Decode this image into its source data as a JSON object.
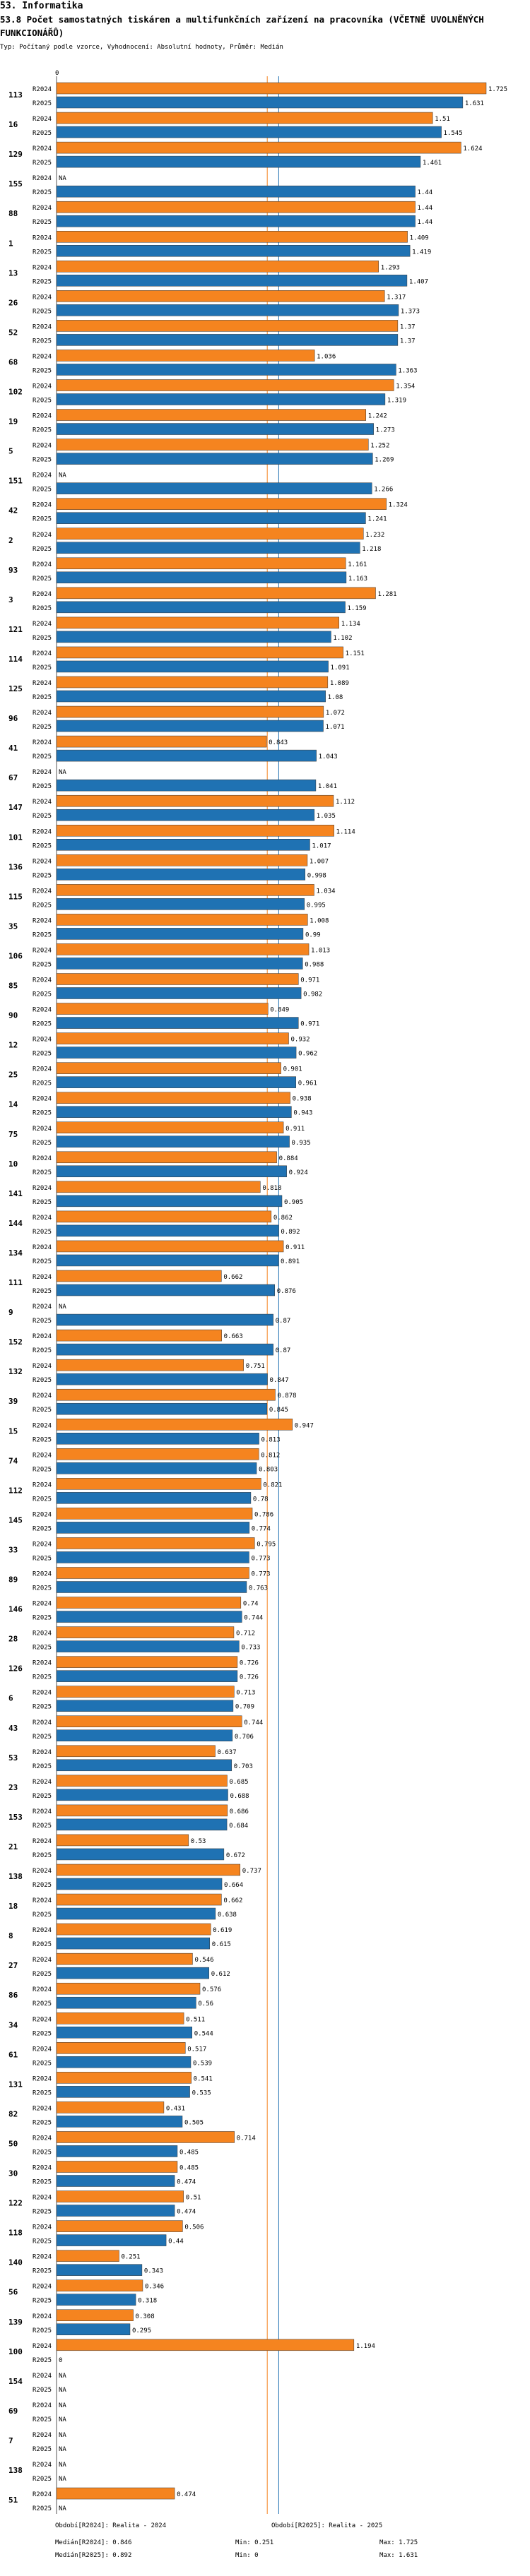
{
  "section_title": "53. Informatika",
  "chart_title": "53.8 Počet samostatných tiskáren a multifunkčních zařízení na pracovníka (VČETNĚ UVOLNĚNÝCH FUNKCIONÁŘŮ)",
  "chart_subtitle": "Typ: Počítaný podle vzorce, Vyhodnocení: Absolutní hodnoty, Průměr: Medián",
  "colors": {
    "r2024": "#F5841F",
    "r2025": "#1F72B3",
    "median": "#F5841F",
    "median2": "#1F72B3",
    "axis": "#555555"
  },
  "footer": {
    "legend_2024": "Období[R2024]: Realita - 2024",
    "legend_2025": "Období[R2025]: Realita - 2025",
    "median_2024": "Medián[R2024]: 0.846",
    "median_2025": "Medián[R2025]: 0.892",
    "min_2024": "Min: 0.251",
    "min_2025": "Min: 0",
    "max_2024": "Max: 1.725",
    "max_2025": "Max: 1.631"
  },
  "chart_data": {
    "type": "bar",
    "orientation": "horizontal",
    "xlim": [
      0,
      1.8
    ],
    "zero_label": "0",
    "na_label": "NA",
    "medians": {
      "R2024": 0.846,
      "R2025": 0.892
    },
    "series_names": [
      "R2024",
      "R2025"
    ],
    "groups": [
      {
        "id": "113",
        "R2024": 1.725,
        "R2025": 1.631
      },
      {
        "id": "16",
        "R2024": 1.51,
        "R2025": 1.545
      },
      {
        "id": "129",
        "R2024": 1.624,
        "R2025": 1.461
      },
      {
        "id": "155",
        "R2024": null,
        "R2025": 1.44
      },
      {
        "id": "88",
        "R2024": 1.44,
        "R2025": 1.44
      },
      {
        "id": "1",
        "R2024": 1.409,
        "R2025": 1.419
      },
      {
        "id": "13",
        "R2024": 1.293,
        "R2025": 1.407
      },
      {
        "id": "26",
        "R2024": 1.317,
        "R2025": 1.373
      },
      {
        "id": "52",
        "R2024": 1.37,
        "R2025": 1.37
      },
      {
        "id": "68",
        "R2024": 1.036,
        "R2025": 1.363
      },
      {
        "id": "102",
        "R2024": 1.354,
        "R2025": 1.319
      },
      {
        "id": "19",
        "R2024": 1.242,
        "R2025": 1.273
      },
      {
        "id": "5",
        "R2024": 1.252,
        "R2025": 1.269
      },
      {
        "id": "151",
        "R2024": null,
        "R2025": 1.266
      },
      {
        "id": "42",
        "R2024": 1.324,
        "R2025": 1.241
      },
      {
        "id": "2",
        "R2024": 1.232,
        "R2025": 1.218
      },
      {
        "id": "93",
        "R2024": 1.161,
        "R2025": 1.163
      },
      {
        "id": "3",
        "R2024": 1.281,
        "R2025": 1.159
      },
      {
        "id": "121",
        "R2024": 1.134,
        "R2025": 1.102
      },
      {
        "id": "114",
        "R2024": 1.151,
        "R2025": 1.091
      },
      {
        "id": "125",
        "R2024": 1.089,
        "R2025": 1.08
      },
      {
        "id": "96",
        "R2024": 1.072,
        "R2025": 1.071
      },
      {
        "id": "41",
        "R2024": 0.843,
        "R2025": 1.043
      },
      {
        "id": "67",
        "R2024": null,
        "R2025": 1.041
      },
      {
        "id": "147",
        "R2024": 1.112,
        "R2025": 1.035
      },
      {
        "id": "101",
        "R2024": 1.114,
        "R2025": 1.017
      },
      {
        "id": "136",
        "R2024": 1.007,
        "R2025": 0.998
      },
      {
        "id": "115",
        "R2024": 1.034,
        "R2025": 0.995
      },
      {
        "id": "35",
        "R2024": 1.008,
        "R2025": 0.99
      },
      {
        "id": "106",
        "R2024": 1.013,
        "R2025": 0.988
      },
      {
        "id": "85",
        "R2024": 0.971,
        "R2025": 0.982
      },
      {
        "id": "90",
        "R2024": 0.849,
        "R2025": 0.971
      },
      {
        "id": "12",
        "R2024": 0.932,
        "R2025": 0.962
      },
      {
        "id": "25",
        "R2024": 0.901,
        "R2025": 0.961
      },
      {
        "id": "14",
        "R2024": 0.938,
        "R2025": 0.943
      },
      {
        "id": "75",
        "R2024": 0.911,
        "R2025": 0.935
      },
      {
        "id": "10",
        "R2024": 0.884,
        "R2025": 0.924
      },
      {
        "id": "141",
        "R2024": 0.818,
        "R2025": 0.905
      },
      {
        "id": "144",
        "R2024": 0.862,
        "R2025": 0.892
      },
      {
        "id": "134",
        "R2024": 0.911,
        "R2025": 0.891
      },
      {
        "id": "111",
        "R2024": 0.662,
        "R2025": 0.876
      },
      {
        "id": "9",
        "R2024": null,
        "R2025": 0.87
      },
      {
        "id": "152",
        "R2024": 0.663,
        "R2025": 0.87
      },
      {
        "id": "132",
        "R2024": 0.751,
        "R2025": 0.847
      },
      {
        "id": "39",
        "R2024": 0.878,
        "R2025": 0.845
      },
      {
        "id": "15",
        "R2024": 0.947,
        "R2025": 0.813
      },
      {
        "id": "74",
        "R2024": 0.812,
        "R2025": 0.803
      },
      {
        "id": "112",
        "R2024": 0.821,
        "R2025": 0.78
      },
      {
        "id": "145",
        "R2024": 0.786,
        "R2025": 0.774
      },
      {
        "id": "33",
        "R2024": 0.795,
        "R2025": 0.773
      },
      {
        "id": "89",
        "R2024": 0.773,
        "R2025": 0.763
      },
      {
        "id": "146",
        "R2024": 0.74,
        "R2025": 0.744
      },
      {
        "id": "28",
        "R2024": 0.712,
        "R2025": 0.733
      },
      {
        "id": "126",
        "R2024": 0.726,
        "R2025": 0.726
      },
      {
        "id": "6",
        "R2024": 0.713,
        "R2025": 0.709
      },
      {
        "id": "43",
        "R2024": 0.744,
        "R2025": 0.706
      },
      {
        "id": "53",
        "R2024": 0.637,
        "R2025": 0.703
      },
      {
        "id": "23",
        "R2024": 0.685,
        "R2025": 0.688
      },
      {
        "id": "153",
        "R2024": 0.686,
        "R2025": 0.684
      },
      {
        "id": "21",
        "R2024": 0.53,
        "R2025": 0.672
      },
      {
        "id": "138",
        "R2024": 0.737,
        "R2025": 0.664
      },
      {
        "id": "18",
        "R2024": 0.662,
        "R2025": 0.638
      },
      {
        "id": "8",
        "R2024": 0.619,
        "R2025": 0.615
      },
      {
        "id": "27",
        "R2024": 0.546,
        "R2025": 0.612
      },
      {
        "id": "86",
        "R2024": 0.576,
        "R2025": 0.56
      },
      {
        "id": "34",
        "R2024": 0.511,
        "R2025": 0.544
      },
      {
        "id": "61",
        "R2024": 0.517,
        "R2025": 0.539
      },
      {
        "id": "131",
        "R2024": 0.541,
        "R2025": 0.535
      },
      {
        "id": "82",
        "R2024": 0.431,
        "R2025": 0.505
      },
      {
        "id": "50",
        "R2024": 0.714,
        "R2025": 0.485
      },
      {
        "id": "30",
        "R2024": 0.485,
        "R2025": 0.474
      },
      {
        "id": "122",
        "R2024": 0.51,
        "R2025": 0.474
      },
      {
        "id": "118",
        "R2024": 0.506,
        "R2025": 0.44
      },
      {
        "id": "140",
        "R2024": 0.251,
        "R2025": 0.343
      },
      {
        "id": "56",
        "R2024": 0.346,
        "R2025": 0.318
      },
      {
        "id": "139",
        "R2024": 0.308,
        "R2025": 0.295
      },
      {
        "id": "100",
        "R2024": 1.194,
        "R2025": 0
      },
      {
        "id": "154",
        "R2024": null,
        "R2025": null
      },
      {
        "id": "69",
        "R2024": null,
        "R2025": null
      },
      {
        "id": "7",
        "R2024": null,
        "R2025": null
      },
      {
        "id": "138",
        "R2024": null,
        "R2025": null
      },
      {
        "id": "51",
        "R2024": 0.474,
        "R2025": null
      }
    ]
  }
}
